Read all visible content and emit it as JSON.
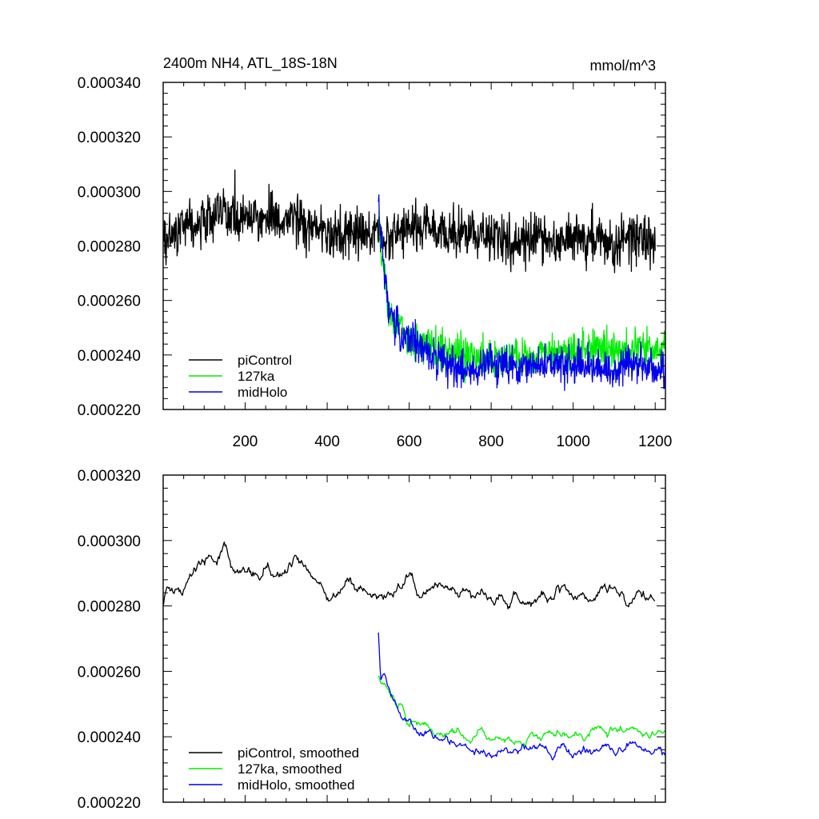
{
  "header": {
    "title": "2400m NH4, ATL_18S-18N",
    "units": "mmol/m^3"
  },
  "colors": {
    "piControl": "#000000",
    "127ka": "#00ee00",
    "midHolo": "#0000ee",
    "axis": "#000000",
    "background": "#ffffff"
  },
  "chart_data": [
    {
      "type": "line",
      "title": "2400m NH4, ATL_18S-18N",
      "units_label": "mmol/m^3",
      "xlabel": "",
      "ylabel": "",
      "xlim": [
        0,
        1225
      ],
      "ylim": [
        0.00022,
        0.00034
      ],
      "xticks": [
        200,
        400,
        600,
        800,
        1000,
        1200
      ],
      "xtick_labels": [
        "200",
        "400",
        "600",
        "800",
        "1000",
        "1200"
      ],
      "yticks": [
        0.00022,
        0.00024,
        0.00026,
        0.00028,
        0.0003,
        0.00032,
        0.00034
      ],
      "ytick_labels": [
        "0.000220",
        "0.000240",
        "0.000260",
        "0.000280",
        "0.000300",
        "0.000320",
        "0.000340"
      ],
      "grid": false,
      "legend_position": "bottom-left",
      "series": [
        {
          "name": "piControl",
          "color": "#000000",
          "x": [
            1,
            50,
            100,
            150,
            200,
            250,
            300,
            350,
            400,
            450,
            500,
            550,
            600,
            650,
            700,
            750,
            800,
            850,
            900,
            950,
            1000,
            1050,
            1100,
            1150,
            1200
          ],
          "y": [
            0.000282,
            0.000287,
            0.00029,
            0.000291,
            0.000292,
            0.00029,
            0.00029,
            0.000288,
            0.000283,
            0.000285,
            0.000286,
            0.000283,
            0.000287,
            0.000286,
            0.000284,
            0.000284,
            0.000283,
            0.000281,
            0.000284,
            0.000282,
            0.000283,
            0.000284,
            0.00028,
            0.000284,
            0.000282
          ]
        },
        {
          "name": "127ka",
          "color": "#00ee00",
          "x": [
            525,
            550,
            575,
            600,
            625,
            650,
            675,
            700,
            750,
            800,
            850,
            900,
            950,
            1000,
            1050,
            1100,
            1150,
            1200,
            1225
          ],
          "y": [
            0.00029,
            0.000255,
            0.000249,
            0.000245,
            0.000244,
            0.000243,
            0.000242,
            0.000241,
            0.000239,
            0.000239,
            0.00024,
            0.000239,
            0.000241,
            0.000242,
            0.000242,
            0.000242,
            0.000243,
            0.000242,
            0.000243
          ]
        },
        {
          "name": "midHolo",
          "color": "#0000ee",
          "x": [
            525,
            550,
            575,
            600,
            625,
            650,
            675,
            700,
            750,
            800,
            850,
            900,
            950,
            1000,
            1050,
            1100,
            1150,
            1200,
            1225
          ],
          "y": [
            0.000292,
            0.000257,
            0.000249,
            0.000245,
            0.000243,
            0.00024,
            0.000238,
            0.000237,
            0.000234,
            0.000236,
            0.000236,
            0.000236,
            0.000237,
            0.000236,
            0.000236,
            0.000234,
            0.000237,
            0.000235,
            0.000235
          ]
        }
      ]
    },
    {
      "type": "line",
      "title": "",
      "xlabel": "",
      "ylabel": "",
      "xlim": [
        0,
        1225
      ],
      "ylim": [
        0.00022,
        0.00032
      ],
      "xticks": [
        200,
        400,
        600,
        800,
        1000,
        1200
      ],
      "yticks": [
        0.00022,
        0.00024,
        0.00026,
        0.00028,
        0.0003,
        0.00032
      ],
      "ytick_labels": [
        "0.000220",
        "0.000240",
        "0.000260",
        "0.000280",
        "0.000300",
        "0.000320"
      ],
      "grid": false,
      "legend_position": "bottom-left",
      "series": [
        {
          "name": "piControl, smoothed",
          "color": "#000000",
          "x": [
            1,
            10,
            25,
            50,
            75,
            100,
            125,
            150,
            175,
            200,
            225,
            250,
            275,
            300,
            325,
            350,
            375,
            400,
            425,
            450,
            475,
            500,
            525,
            550,
            575,
            600,
            625,
            650,
            675,
            700,
            725,
            750,
            775,
            800,
            825,
            850,
            875,
            900,
            925,
            950,
            975,
            1000,
            1025,
            1050,
            1075,
            1100,
            1125,
            1150,
            1175,
            1200
          ],
          "y": [
            0.000282,
            0.000287,
            0.000285,
            0.000286,
            0.000292,
            0.000293,
            0.000294,
            0.000299,
            0.000291,
            0.000293,
            0.000289,
            0.000292,
            0.000288,
            0.00029,
            0.000292,
            0.00029,
            0.000287,
            0.000283,
            0.000284,
            0.000289,
            0.000286,
            0.000283,
            0.000283,
            0.000284,
            0.000287,
            0.00029,
            0.000283,
            0.000285,
            0.000288,
            0.000283,
            0.000285,
            0.000283,
            0.000283,
            0.00028,
            0.000283,
            0.000283,
            0.000281,
            0.000281,
            0.000283,
            0.000284,
            0.000286,
            0.000281,
            0.000285,
            0.000282,
            0.000286,
            0.000285,
            0.000282,
            0.000282,
            0.000284,
            0.000281
          ]
        },
        {
          "name": "127ka, smoothed",
          "color": "#00ee00",
          "x": [
            525,
            540,
            560,
            580,
            600,
            625,
            650,
            675,
            700,
            725,
            750,
            775,
            800,
            825,
            850,
            875,
            900,
            925,
            950,
            975,
            1000,
            1025,
            1050,
            1075,
            1100,
            1125,
            1150,
            1175,
            1200,
            1225
          ],
          "y": [
            0.000259,
            0.000256,
            0.000252,
            0.000249,
            0.000245,
            0.000243,
            0.000243,
            0.000242,
            0.000242,
            0.000241,
            0.00024,
            0.000241,
            0.000239,
            0.00024,
            0.000239,
            0.000238,
            0.000241,
            0.00024,
            0.000241,
            0.00024,
            0.000242,
            0.00024,
            0.000242,
            0.000241,
            0.000243,
            0.000242,
            0.000243,
            0.000241,
            0.000242,
            0.000242
          ]
        },
        {
          "name": "midHolo, smoothed",
          "color": "#0000ee",
          "x": [
            525,
            530,
            540,
            560,
            580,
            600,
            625,
            650,
            675,
            700,
            725,
            750,
            775,
            800,
            825,
            850,
            875,
            900,
            925,
            950,
            975,
            1000,
            1025,
            1050,
            1075,
            1100,
            1125,
            1150,
            1175,
            1200,
            1225
          ],
          "y": [
            0.000272,
            0.000258,
            0.000259,
            0.000251,
            0.000246,
            0.000245,
            0.000242,
            0.000242,
            0.00024,
            0.000239,
            0.000238,
            0.000235,
            0.000236,
            0.000235,
            0.000237,
            0.000236,
            0.000236,
            0.000237,
            0.000237,
            0.000235,
            0.000238,
            0.000236,
            0.000236,
            0.000234,
            0.000236,
            0.000235,
            0.000237,
            0.000238,
            0.000236,
            0.000236,
            0.000235
          ]
        }
      ]
    }
  ]
}
